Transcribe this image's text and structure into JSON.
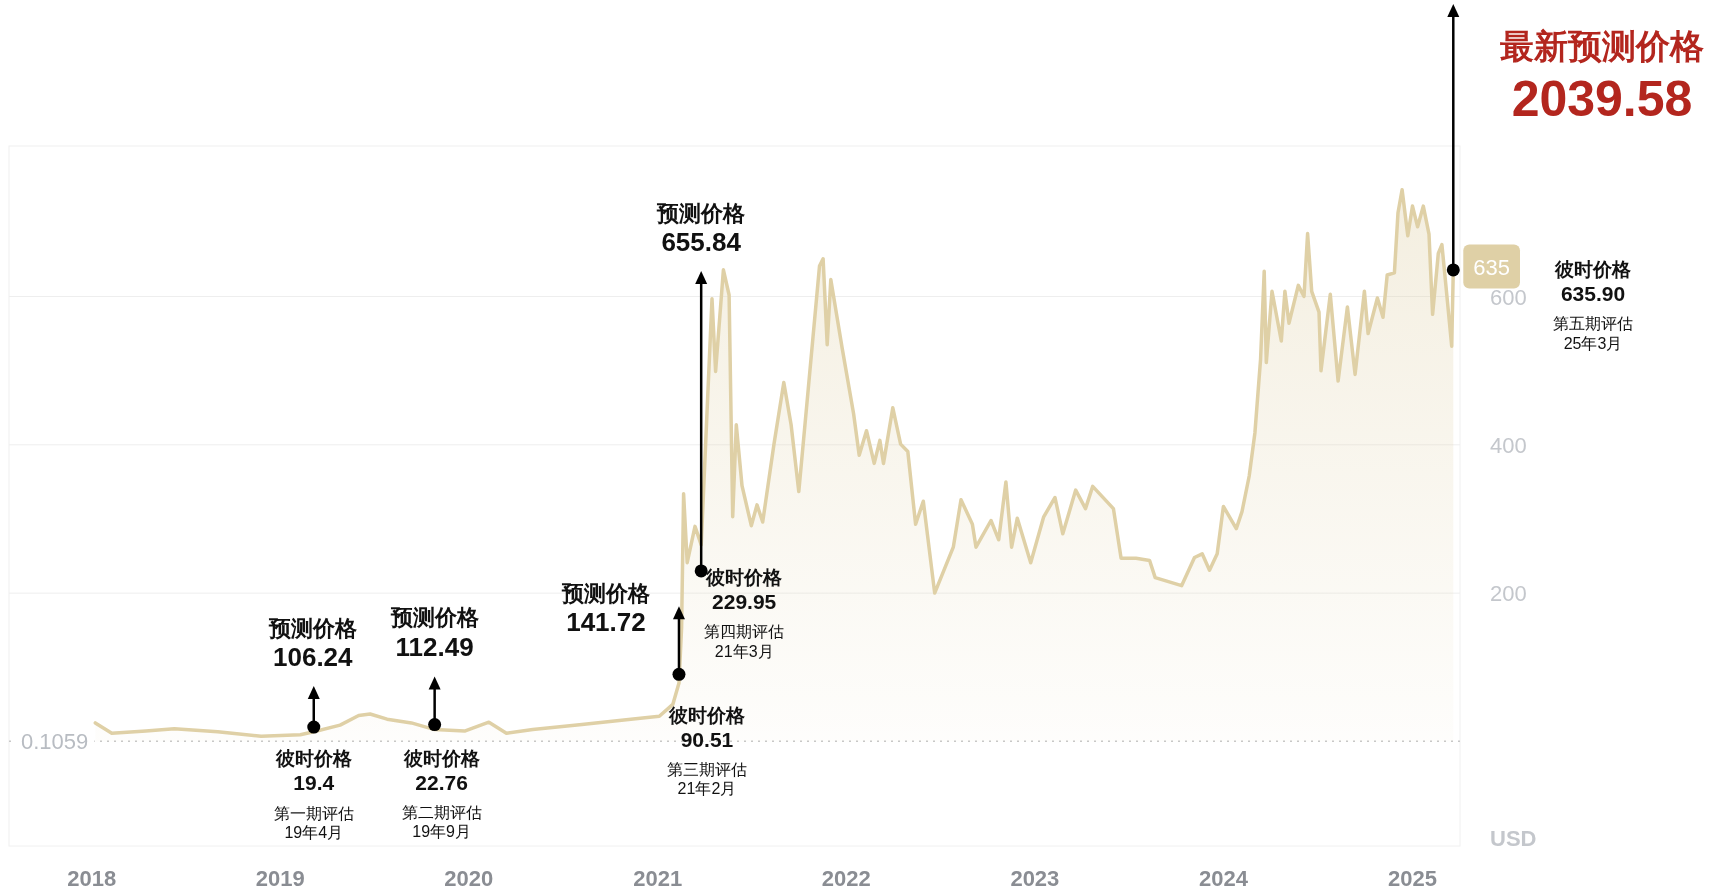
{
  "chart_data": {
    "type": "area",
    "ylabel": "USD",
    "xlim": [
      "2017-07-25",
      "2025-04-03"
    ],
    "ylim": [
      -141,
      803
    ],
    "xticks": [
      "2018",
      "2019",
      "2020",
      "2021",
      "2022",
      "2023",
      "2024",
      "2025"
    ],
    "yticks": [
      200,
      400,
      600
    ],
    "grid": "y",
    "ref_lines": [
      {
        "axis": "y",
        "value": 0.1059,
        "label": "0.1059",
        "color": "#c8c8c8",
        "line_style": "dotted"
      }
    ],
    "series": [
      {
        "color": "#dfd0a6",
        "x": [
          "2018-01-08",
          "2018-02-09",
          "2018-04-16",
          "2018-06-10",
          "2018-09-02",
          "2018-11-25",
          "2019-02-09",
          "2019-03-07",
          "2019-04-27",
          "2019-06-02",
          "2019-06-24",
          "2019-07-27",
          "2019-09-12",
          "2019-10-27",
          "2019-12-24",
          "2020-02-09",
          "2020-03-14",
          "2020-05-04",
          "2020-08-07",
          "2020-11-10",
          "2021-01-04",
          "2021-01-30",
          "2021-02-11",
          "2021-02-16",
          "2021-02-20",
          "2021-02-27",
          "2021-03-14",
          "2021-03-26",
          "2021-04-16",
          "2021-04-23",
          "2021-05-08",
          "2021-05-19",
          "2021-05-26",
          "2021-06-02",
          "2021-06-13",
          "2021-07-01",
          "2021-07-12",
          "2021-07-23",
          "2021-08-14",
          "2021-09-02",
          "2021-09-16",
          "2021-10-01",
          "2021-10-19",
          "2021-11-10",
          "2021-11-17",
          "2021-11-25",
          "2021-12-02",
          "2021-12-24",
          "2022-01-15",
          "2022-01-26",
          "2022-02-09",
          "2022-02-24",
          "2022-03-07",
          "2022-03-14",
          "2022-04-01",
          "2022-04-16",
          "2022-04-30",
          "2022-05-15",
          "2022-05-30",
          "2022-06-21",
          "2022-07-12",
          "2022-07-27",
          "2022-08-11",
          "2022-09-02",
          "2022-09-09",
          "2022-10-08",
          "2022-10-23",
          "2022-11-06",
          "2022-11-17",
          "2022-11-28",
          "2022-12-24",
          "2023-01-18",
          "2023-02-09",
          "2023-02-24",
          "2023-03-21",
          "2023-04-09",
          "2023-04-23",
          "2023-06-02",
          "2023-06-17",
          "2023-07-16",
          "2023-08-11",
          "2023-08-22",
          "2023-10-12",
          "2023-11-06",
          "2023-11-21",
          "2023-12-05",
          "2023-12-20",
          "2024-01-01",
          "2024-01-26",
          "2024-02-06",
          "2024-02-20",
          "2024-03-02",
          "2024-03-13",
          "2024-03-20",
          "2024-03-24",
          "2024-04-04",
          "2024-04-22",
          "2024-04-29",
          "2024-05-07",
          "2024-05-25",
          "2024-06-05",
          "2024-06-12",
          "2024-06-20",
          "2024-07-04",
          "2024-07-08",
          "2024-07-26",
          "2024-08-10",
          "2024-08-28",
          "2024-09-12",
          "2024-09-30",
          "2024-10-07",
          "2024-10-25",
          "2024-11-05",
          "2024-11-13",
          "2024-11-27",
          "2024-12-04",
          "2024-12-12",
          "2024-12-23",
          "2025-01-01",
          "2025-01-11",
          "2025-01-22",
          "2025-02-02",
          "2025-02-09",
          "2025-02-20",
          "2025-02-27",
          "2025-03-07",
          "2025-03-18",
          "2025-03-21"
        ],
        "values": [
          25,
          11,
          14,
          17,
          13,
          7,
          9,
          13,
          22,
          35,
          37,
          30,
          25,
          16,
          14,
          26,
          11,
          16,
          23,
          30,
          34,
          50,
          79,
          154,
          334,
          241,
          290,
          265,
          597,
          499,
          636,
          602,
          303,
          427,
          345,
          291,
          319,
          296,
          401,
          484,
          427,
          337,
          473,
          641,
          651,
          535,
          623,
          530,
          442,
          386,
          419,
          375,
          406,
          375,
          450,
          401,
          391,
          293,
          324,
          200,
          236,
          262,
          326,
          293,
          262,
          298,
          272,
          350,
          262,
          301,
          241,
          303,
          329,
          280,
          339,
          314,
          344,
          314,
          247,
          247,
          244,
          221,
          210,
          248,
          253,
          231,
          253,
          317,
          287,
          310,
          358,
          416,
          516,
          634,
          511,
          607,
          540,
          607,
          564,
          615,
          600,
          685,
          607,
          579,
          500,
          603,
          486,
          586,
          495,
          607,
          550,
          598,
          572,
          629,
          632,
          713,
          744,
          682,
          722,
          694,
          722,
          684,
          576,
          658,
          670,
          612,
          533,
          636
        ]
      },
      {
        "type": "scatter",
        "color": "#000000",
        "x": [
          "2019-03-07",
          "2019-10-27",
          "2021-02-11",
          "2021-03-26",
          "2025-03-21"
        ],
        "values": [
          19.4,
          22.76,
          90.51,
          229.95,
          635.9
        ]
      }
    ],
    "annotations": [
      "预测价格\n106.24",
      "彼时价格\n19.4\n第一期评估\n19年4月",
      "预测价格\n112.49",
      "彼时价格\n22.76\n第二期评估\n19年9月",
      "预测价格\n141.72",
      "彼时价格\n90.51\n第三期评估\n21年2月",
      "预测价格\n655.84",
      "彼时价格\n229.95\n第四期评估\n21年3月",
      {
        "text": "635",
        "x": "2025-03-21",
        "y": 635
      },
      "最新预测价格\n2039.58",
      "彼时价格\n635.90\n第五期评估\n25年3月"
    ]
  }
}
